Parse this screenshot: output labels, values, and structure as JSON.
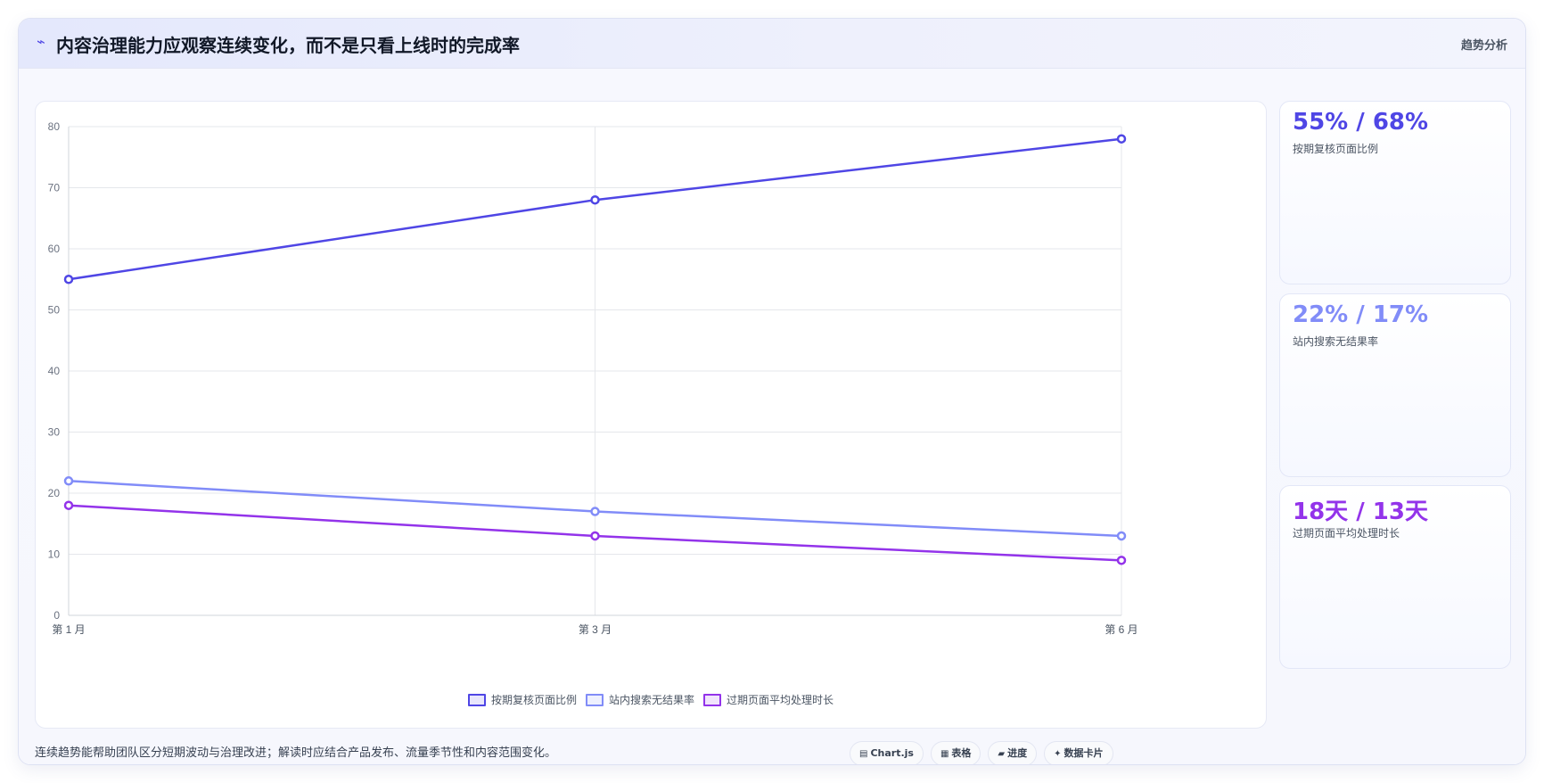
{
  "header": {
    "title": "内容治理能力应观察连续变化，而不是只看上线时的完成率",
    "tag": "趋势分析"
  },
  "chart_data": {
    "type": "line",
    "categories": [
      "第 1 月",
      "第 3 月",
      "第 6 月"
    ],
    "series": [
      {
        "name": "按期复核页面比例",
        "values": [
          55,
          68,
          78
        ],
        "color": "#4f46e5"
      },
      {
        "name": "站内搜索无结果率",
        "values": [
          22,
          17,
          13
        ],
        "color": "#818cf8"
      },
      {
        "name": "过期页面平均处理时长",
        "values": [
          18,
          13,
          9
        ],
        "color": "#9333ea"
      }
    ],
    "ylim": [
      0,
      80
    ],
    "yticks": [
      0,
      10,
      20,
      30,
      40,
      50,
      60,
      70,
      80
    ],
    "grid": true,
    "legend_position": "bottom-center"
  },
  "stats": [
    {
      "value": "55% / 68%",
      "label": "按期复核页面比例",
      "color": "#4f46e5"
    },
    {
      "value": "22% / 17%",
      "label": "站内搜索无结果率",
      "color": "#818cf8"
    },
    {
      "value": "18天 / 13天",
      "label": "过期页面平均处理时长",
      "color": "#9333ea"
    }
  ],
  "footer": {
    "note": "连续趋势能帮助团队区分短期波动与治理改进；解读时应结合产品发布、流量季节性和内容范围变化。",
    "chips": [
      {
        "icon": "chart-icon",
        "glyph": "▤",
        "label": "Chart.js"
      },
      {
        "icon": "table-icon",
        "glyph": "▦",
        "label": "表格"
      },
      {
        "icon": "progress-icon",
        "glyph": "▰",
        "label": "进度"
      },
      {
        "icon": "sparkle-icon",
        "glyph": "✦",
        "label": "数据卡片"
      }
    ]
  }
}
